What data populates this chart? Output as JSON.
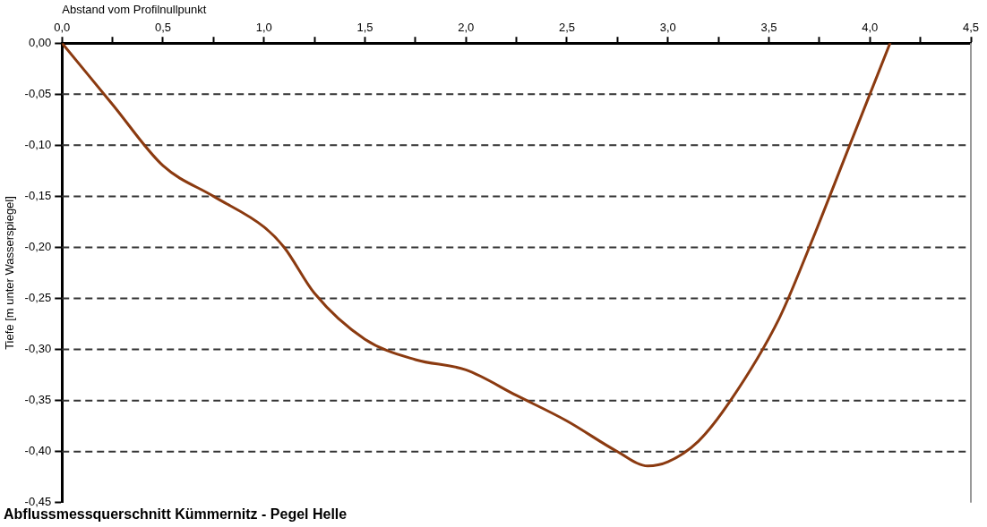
{
  "chart_data": {
    "type": "line",
    "title": "Abflussmessquerschnitt Kümmernitz - Pegel Helle",
    "xlabel": "Abstand vom Profilnullpunkt",
    "ylabel": "Tiefe [m unter Wasserspiegel]",
    "x": [
      0,
      0.25,
      0.5,
      0.75,
      1.0,
      1.1,
      1.25,
      1.5,
      1.75,
      2.0,
      2.25,
      2.5,
      2.75,
      2.9,
      3.0,
      3.15,
      3.31,
      3.55,
      3.7,
      3.9,
      4.1
    ],
    "series": [
      {
        "color": "#8b3a10",
        "values": [
          0,
          -0.06,
          -0.12,
          -0.15,
          -0.18,
          -0.2,
          -0.245,
          -0.29,
          -0.31,
          -0.32,
          -0.345,
          -0.37,
          -0.4,
          -0.414,
          -0.41,
          -0.39,
          -0.35,
          -0.27,
          -0.2,
          -0.1,
          0
        ]
      }
    ],
    "xlim": [
      0,
      4.5
    ],
    "xticks": [
      {
        "value": 0,
        "label": "0,0"
      },
      {
        "value": 0.25,
        "label": null
      },
      {
        "value": 0.5,
        "label": "0,5"
      },
      {
        "value": 0.75,
        "label": null
      },
      {
        "value": 1,
        "label": "1,0"
      },
      {
        "value": 1.25,
        "label": null
      },
      {
        "value": 1.5,
        "label": "1,5"
      },
      {
        "value": 1.75,
        "label": null
      },
      {
        "value": 2,
        "label": "2,0"
      },
      {
        "value": 2.25,
        "label": null
      },
      {
        "value": 2.5,
        "label": "2,5"
      },
      {
        "value": 2.75,
        "label": null
      },
      {
        "value": 3,
        "label": "3,0"
      },
      {
        "value": 3.25,
        "label": null
      },
      {
        "value": 3.5,
        "label": "3,5"
      },
      {
        "value": 3.75,
        "label": null
      },
      {
        "value": 4,
        "label": "4,0"
      },
      {
        "value": 4.25,
        "label": null
      },
      {
        "value": 4.5,
        "label": "4,5"
      }
    ],
    "ylim": [
      -0.45,
      0
    ],
    "yticks": [
      {
        "value": 0,
        "label": "0,00"
      },
      {
        "value": -0.05,
        "label": "-0,05"
      },
      {
        "value": -0.1,
        "label": "-0,10"
      },
      {
        "value": -0.15,
        "label": "-0,15"
      },
      {
        "value": -0.2,
        "label": "-0,20"
      },
      {
        "value": -0.25,
        "label": "-0,25"
      },
      {
        "value": -0.3,
        "label": "-0,30"
      },
      {
        "value": -0.35,
        "label": "-0,35"
      },
      {
        "value": -0.4,
        "label": "-0,40"
      },
      {
        "value": -0.45,
        "label": "-0,45"
      }
    ],
    "grid": "y",
    "legend": false,
    "marker": "none",
    "line_style": "solid"
  }
}
